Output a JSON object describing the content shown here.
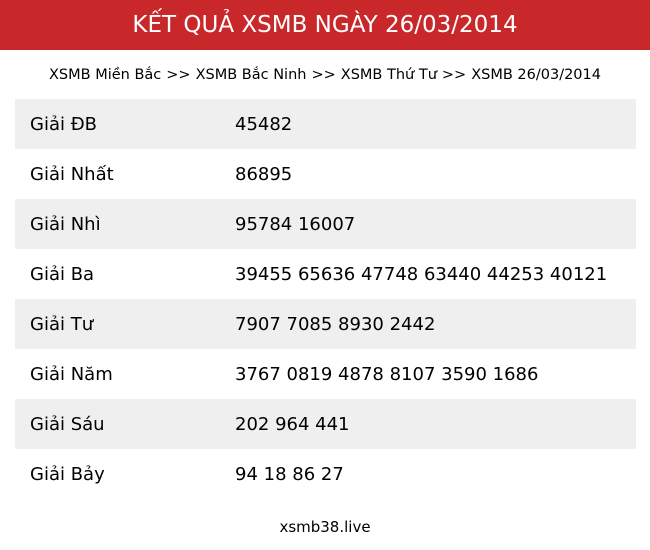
{
  "header": {
    "title": "KẾT QUẢ XSMB NGÀY 26/03/2014",
    "color": "#c9282a"
  },
  "breadcrumb": [
    {
      "label": "XSMB Miền Bắc"
    },
    {
      "label": "XSMB Bắc Ninh"
    },
    {
      "label": "XSMB Thứ Tư"
    },
    {
      "label": "XSMB 26/03/2014"
    }
  ],
  "breadcrumb_sep": ">>",
  "results": [
    {
      "label": "Giải ĐB",
      "value": "45482"
    },
    {
      "label": "Giải Nhất",
      "value": "86895"
    },
    {
      "label": "Giải Nhì",
      "value": "95784 16007"
    },
    {
      "label": "Giải Ba",
      "value": "39455 65636 47748 63440 44253 40121"
    },
    {
      "label": "Giải Tư",
      "value": "7907 7085 8930 2442"
    },
    {
      "label": "Giải Năm",
      "value": "3767 0819 4878 8107 3590 1686"
    },
    {
      "label": "Giải Sáu",
      "value": "202 964 441"
    },
    {
      "label": "Giải Bảy",
      "value": "94 18 86 27"
    }
  ],
  "footer": {
    "site": "xsmb38.live"
  }
}
